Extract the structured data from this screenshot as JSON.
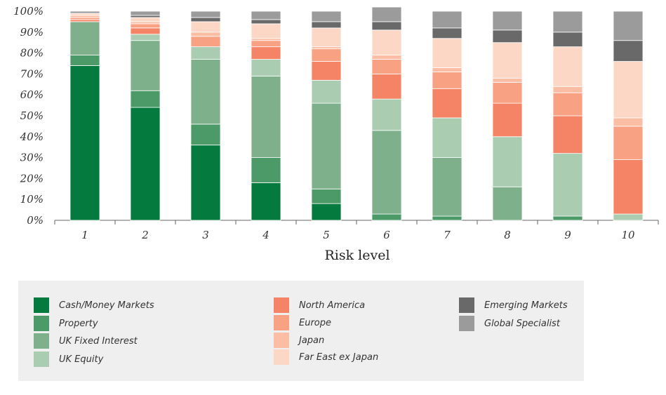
{
  "chart_data": {
    "type": "bar",
    "stacked": true,
    "xlabel": "Risk level",
    "ylabel": "",
    "ylim": [
      0,
      100
    ],
    "yticks": [
      "0%",
      "10%",
      "20%",
      "30%",
      "40%",
      "50%",
      "60%",
      "70%",
      "80%",
      "90%",
      "100%"
    ],
    "categories": [
      "1",
      "2",
      "3",
      "4",
      "5",
      "6",
      "7",
      "8",
      "9",
      "10"
    ],
    "series": [
      {
        "name": "Cash/Money Markets",
        "color": "#047a3e",
        "values": [
          74,
          54,
          36,
          18,
          8,
          0,
          0,
          0,
          0,
          0
        ]
      },
      {
        "name": "Property",
        "color": "#4c9a67",
        "values": [
          5,
          8,
          10,
          12,
          7,
          3,
          2,
          0,
          2,
          0
        ]
      },
      {
        "name": "UK Fixed Interest",
        "color": "#7fb08c",
        "values": [
          16,
          24,
          31,
          39,
          41,
          40,
          28,
          16,
          0,
          0
        ]
      },
      {
        "name": "UK Equity",
        "color": "#aacdb2",
        "values": [
          0,
          3,
          6,
          8,
          11,
          15,
          19,
          24,
          30,
          3
        ]
      },
      {
        "name": "North America",
        "color": "#f48465",
        "values": [
          1,
          3,
          0,
          6,
          9,
          12,
          14,
          16,
          18,
          26
        ]
      },
      {
        "name": "Europe",
        "color": "#f9a183",
        "values": [
          1,
          2,
          5,
          3,
          6,
          7,
          8,
          10,
          11,
          16
        ]
      },
      {
        "name": "Japan",
        "color": "#fbbea4",
        "values": [
          1,
          1,
          2,
          1,
          1,
          2,
          2,
          2,
          3,
          4
        ]
      },
      {
        "name": "Far East ex Japan",
        "color": "#fcd7c6",
        "values": [
          1,
          2,
          5,
          7,
          9,
          12,
          14,
          17,
          19,
          27
        ]
      },
      {
        "name": "Emerging Markets",
        "color": "#696969",
        "values": [
          0,
          1,
          2,
          2,
          3,
          4,
          5,
          6,
          7,
          10
        ]
      },
      {
        "name": "Global Specialist",
        "color": "#9b9b9b",
        "values": [
          1,
          2,
          3,
          4,
          5,
          7,
          8,
          9,
          10,
          14
        ]
      }
    ]
  },
  "legend_columns": [
    [
      "Cash/Money Markets",
      "Property",
      "UK Fixed Interest",
      "UK Equity"
    ],
    [
      "North America",
      "Europe",
      "Japan",
      "Far East ex Japan"
    ],
    [
      "Emerging Markets",
      "Global Specialist"
    ]
  ]
}
